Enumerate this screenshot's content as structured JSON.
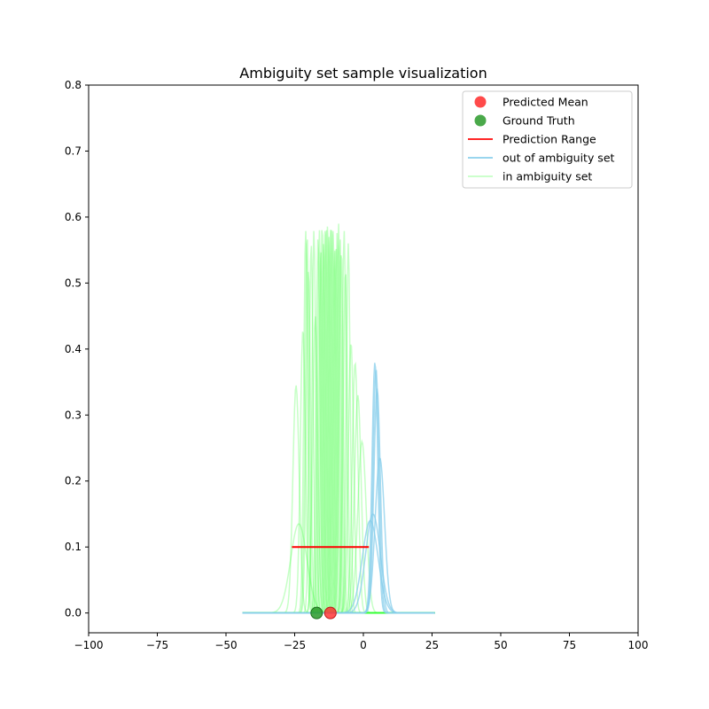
{
  "chart_data": {
    "type": "line",
    "title": "Ambiguity set sample visualization",
    "xlabel": "",
    "ylabel": "",
    "xlim": [
      -100,
      100
    ],
    "ylim": [
      -0.03,
      0.8
    ],
    "x_ticks": [
      -100,
      -75,
      -50,
      -25,
      0,
      25,
      50,
      75,
      100
    ],
    "y_ticks": [
      0.0,
      0.1,
      0.2,
      0.3,
      0.4,
      0.5,
      0.6,
      0.7,
      0.8
    ],
    "grid": false,
    "legend_position": "top-right",
    "legend": [
      {
        "label": "Predicted Mean",
        "kind": "marker",
        "color": "#ff2a2a"
      },
      {
        "label": "Ground Truth",
        "kind": "marker",
        "color": "#2a9a2a"
      },
      {
        "label": "Prediction Range",
        "kind": "line",
        "color": "#ff0000"
      },
      {
        "label": "out of ambiguity set",
        "kind": "line",
        "color": "#87ceeb"
      },
      {
        "label": "in ambiguity set",
        "kind": "line",
        "color": "#ccffcc"
      }
    ],
    "predicted_mean": {
      "x": -12,
      "y": 0.0
    },
    "ground_truth": {
      "x": -17,
      "y": 0.0
    },
    "prediction_range": {
      "x": [
        -26,
        2
      ],
      "y": 0.1
    },
    "in_ambiguity_set": {
      "color": "#33ff33",
      "curves": [
        {
          "mean": -24.5,
          "peak": 0.345
        },
        {
          "mean": -23.5,
          "peak": 0.135
        },
        {
          "mean": -22,
          "peak": 0.43
        },
        {
          "mean": -21,
          "peak": 0.58
        },
        {
          "mean": -20.5,
          "peak": 0.575
        },
        {
          "mean": -20,
          "peak": 0.52
        },
        {
          "mean": -19,
          "peak": 0.56
        },
        {
          "mean": -18,
          "peak": 0.58
        },
        {
          "mean": -17.5,
          "peak": 0.45
        },
        {
          "mean": -16.5,
          "peak": 0.57
        },
        {
          "mean": -16,
          "peak": 0.58
        },
        {
          "mean": -15.5,
          "peak": 0.55
        },
        {
          "mean": -15,
          "peak": 0.59
        },
        {
          "mean": -14.5,
          "peak": 0.56
        },
        {
          "mean": -14,
          "peak": 0.58
        },
        {
          "mean": -13.5,
          "peak": 0.59
        },
        {
          "mean": -13,
          "peak": 0.59
        },
        {
          "mean": -12.5,
          "peak": 0.57
        },
        {
          "mean": -12,
          "peak": 0.585
        },
        {
          "mean": -11.5,
          "peak": 0.59
        },
        {
          "mean": -11,
          "peak": 0.58
        },
        {
          "mean": -10.5,
          "peak": 0.55
        },
        {
          "mean": -10,
          "peak": 0.56
        },
        {
          "mean": -9.5,
          "peak": 0.58
        },
        {
          "mean": -9,
          "peak": 0.59
        },
        {
          "mean": -8.5,
          "peak": 0.57
        },
        {
          "mean": -8,
          "peak": 0.55
        },
        {
          "mean": -7,
          "peak": 0.58
        },
        {
          "mean": -6.5,
          "peak": 0.52
        },
        {
          "mean": -5.5,
          "peak": 0.56
        },
        {
          "mean": -4.5,
          "peak": 0.41
        },
        {
          "mean": -3,
          "peak": 0.38
        },
        {
          "mean": -2,
          "peak": 0.33
        },
        {
          "mean": -0.5,
          "peak": 0.26
        }
      ]
    },
    "out_of_ambiguity_set": {
      "color": "#87ceeb",
      "curves": [
        {
          "mean": 2.5,
          "peak": 0.14
        },
        {
          "mean": 3.5,
          "peak": 0.15
        },
        {
          "mean": 4.2,
          "peak": 0.38
        },
        {
          "mean": 4.6,
          "peak": 0.37
        },
        {
          "mean": 5.0,
          "peak": 0.34
        },
        {
          "mean": 6.0,
          "peak": 0.235
        }
      ]
    },
    "curve_x_range": [
      -44,
      26
    ]
  }
}
